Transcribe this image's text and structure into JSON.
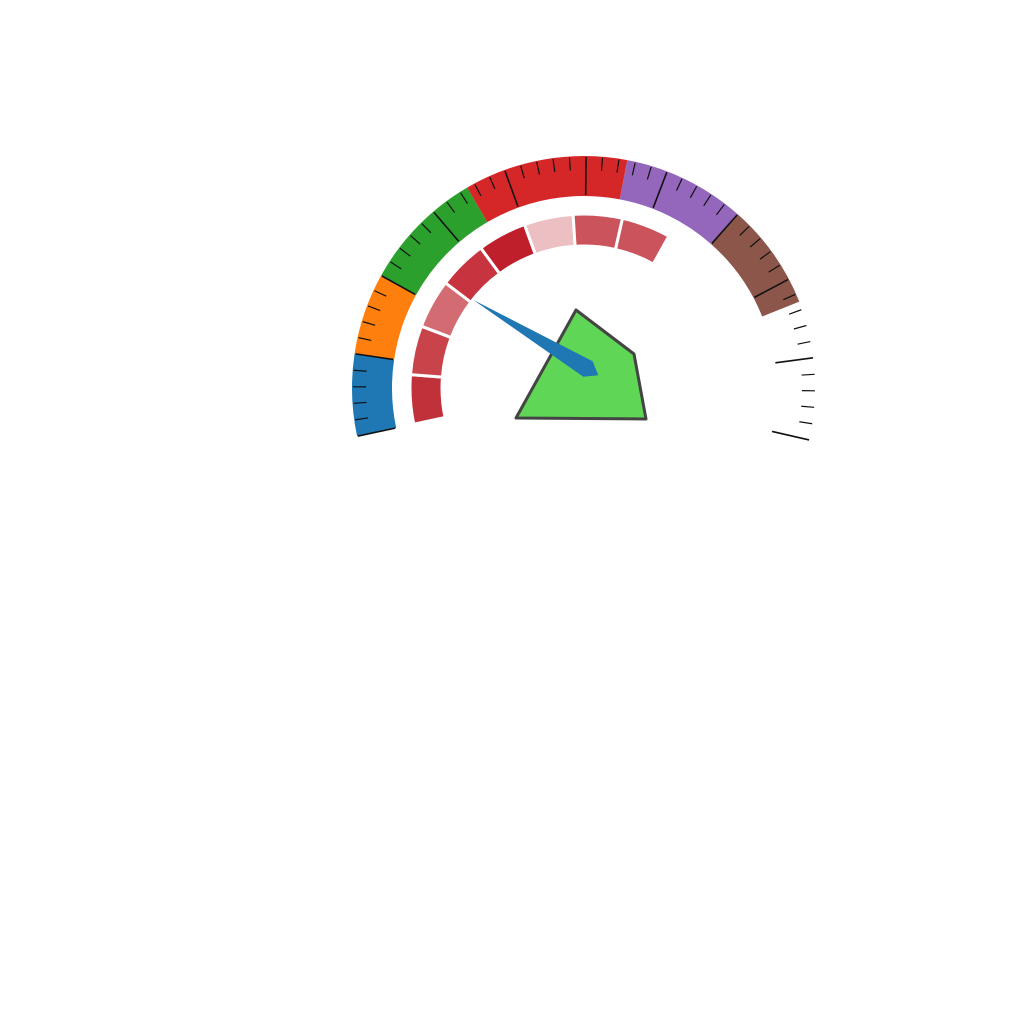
{
  "chart_data": {
    "type": "gauge",
    "title": "",
    "scale": {
      "min": 0,
      "max": 100,
      "major_step": 10,
      "minor_step": 2
    },
    "outer_bands": [
      {
        "from": 0,
        "to": 10,
        "color": "#1f77b4"
      },
      {
        "from": 10,
        "to": 20,
        "color": "#ff7f0e"
      },
      {
        "from": 20,
        "to": 35,
        "color": "#2ca02c"
      },
      {
        "from": 35,
        "to": 55,
        "color": "#d62728"
      },
      {
        "from": 55,
        "to": 70,
        "color": "#9467bd"
      },
      {
        "from": 70,
        "to": 83,
        "color": "#8c564b"
      }
    ],
    "inner_segments": [
      {
        "from": 0,
        "to": 8,
        "color": "#c0313a"
      },
      {
        "from": 8,
        "to": 16,
        "color": "#c9434b"
      },
      {
        "from": 16,
        "to": 24,
        "color": "#d36b72"
      },
      {
        "from": 24,
        "to": 32,
        "color": "#c73440"
      },
      {
        "from": 32,
        "to": 40,
        "color": "#bf1f2a"
      },
      {
        "from": 40,
        "to": 48,
        "color": "#ecbfc3"
      },
      {
        "from": 48,
        "to": 56,
        "color": "#cb545c"
      },
      {
        "from": 56,
        "to": 64,
        "color": "#cb545c"
      }
    ],
    "needle": {
      "value": 21,
      "color": "#1f77b4"
    },
    "center_shape": {
      "color": "#5fd655",
      "stroke": "#444444"
    }
  }
}
